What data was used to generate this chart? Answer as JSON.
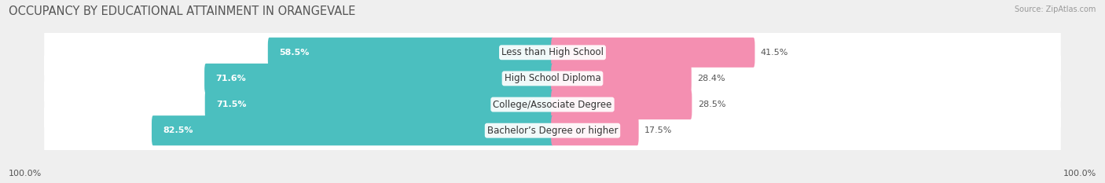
{
  "title": "OCCUPANCY BY EDUCATIONAL ATTAINMENT IN ORANGEVALE",
  "source": "Source: ZipAtlas.com",
  "categories": [
    "Less than High School",
    "High School Diploma",
    "College/Associate Degree",
    "Bachelor’s Degree or higher"
  ],
  "owner_pct": [
    58.5,
    71.6,
    71.5,
    82.5
  ],
  "renter_pct": [
    41.5,
    28.4,
    28.5,
    17.5
  ],
  "owner_color": "#4bbfbf",
  "renter_color": "#f48fb1",
  "bg_color": "#efefef",
  "row_bg_color": "#ffffff",
  "axis_label_left": "100.0%",
  "axis_label_right": "100.0%",
  "title_fontsize": 10.5,
  "label_fontsize": 8.5,
  "pct_fontsize": 8.0,
  "bar_height": 0.55,
  "figsize": [
    14.06,
    2.33
  ]
}
